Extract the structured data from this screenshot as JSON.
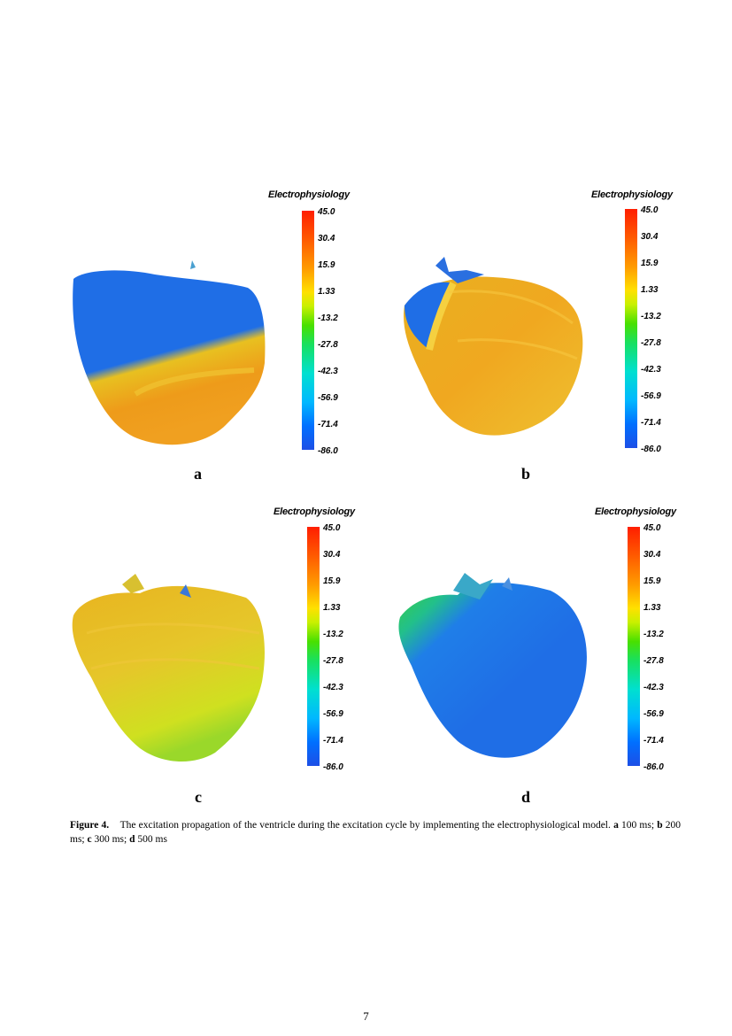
{
  "colorbar": {
    "title": "Electrophysiology",
    "ticks": [
      "45.0",
      "30.4",
      "15.9",
      "1.33",
      "-13.2",
      "-27.8",
      "-42.3",
      "-56.9",
      "-71.4",
      "-86.0"
    ]
  },
  "panels": [
    {
      "label": "a",
      "state": "mostly-blue-with-orange-apex"
    },
    {
      "label": "b",
      "state": "mostly-orange-blue-upper-left"
    },
    {
      "label": "c",
      "state": "yellow-orange-with-green-apex"
    },
    {
      "label": "d",
      "state": "blue-with-green-upper-left"
    }
  ],
  "caption": {
    "lead": "Figure 4.",
    "text1": "The excitation propagation of the ventricle during the excitation cycle by implementing the electrophysiological model.",
    "a": "a",
    "a_text": "100 ms;",
    "b": "b",
    "b_text": "200 ms;",
    "c": "c",
    "c_text": "300 ms;",
    "d": "d",
    "d_text": "500 ms"
  },
  "page_number": "7"
}
